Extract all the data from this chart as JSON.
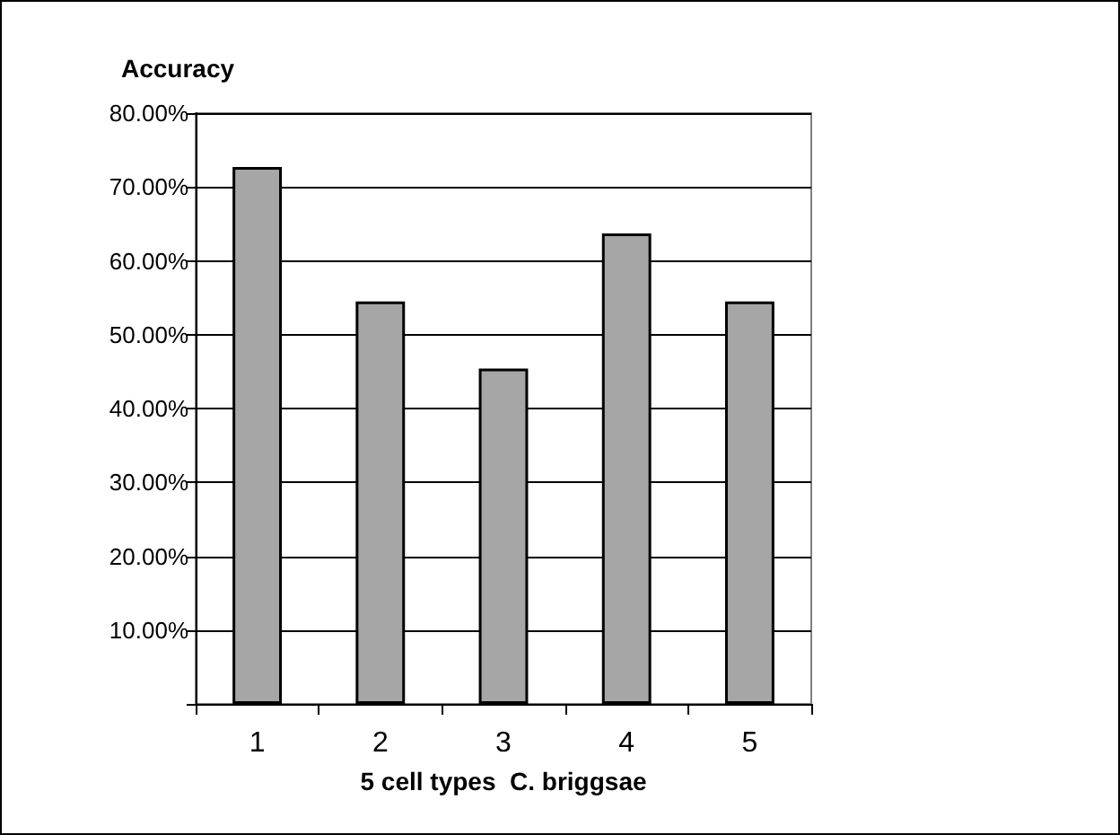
{
  "chart_data": {
    "type": "bar",
    "ylabel": "Accuracy",
    "xlabel": "5 cell types  C. briggsae",
    "categories": [
      "1",
      "2",
      "3",
      "4",
      "5"
    ],
    "series": [
      {
        "color": "#a6a6a6",
        "values": [
          72.7,
          54.5,
          45.4,
          63.7,
          54.5
        ]
      }
    ],
    "ylim": [
      0,
      80
    ],
    "yticks": [
      {
        "value": 0,
        "label": null
      },
      {
        "value": 10,
        "label": "10.00%"
      },
      {
        "value": 20,
        "label": "20.00%"
      },
      {
        "value": 30,
        "label": "30.00%"
      },
      {
        "value": 40,
        "label": "40.00%"
      },
      {
        "value": 50,
        "label": "50.00%"
      },
      {
        "value": 60,
        "label": "60.00%"
      },
      {
        "value": 70,
        "label": "70.00%"
      },
      {
        "value": 80,
        "label": "80.00%"
      }
    ],
    "grid": "y"
  }
}
